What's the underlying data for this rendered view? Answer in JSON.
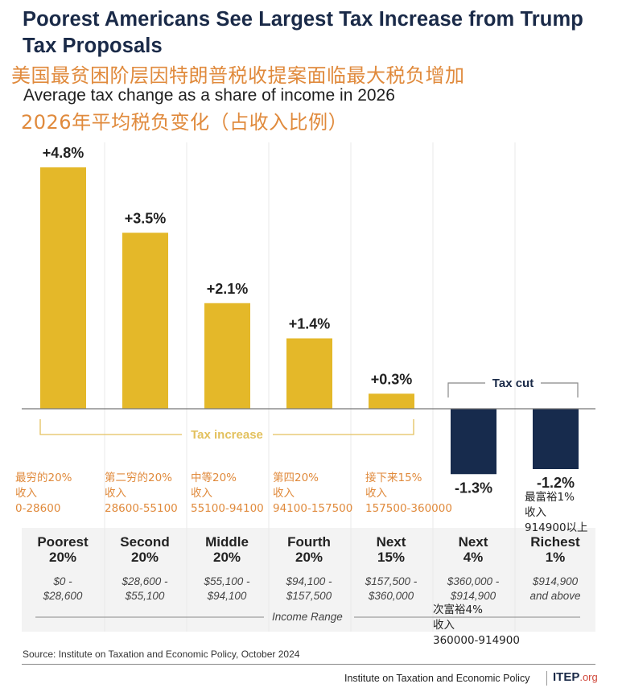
{
  "header": {
    "title": "Poorest Americans See Largest Tax Increase from Trump Tax Proposals",
    "title_cn": "美国最贫困阶层因特朗普税收提案面临最大税负增加",
    "subtitle": "Average tax change as a share of income in 2026",
    "subtitle_cn": "2026年平均税负变化（占收入比例）"
  },
  "colors": {
    "increase": "#e4b829",
    "cut": "#172b4d",
    "annotation_cn": "#e08a3c",
    "title": "#1a2a48",
    "increase_bracket": "#e3c15e"
  },
  "chart_data": {
    "type": "bar",
    "title": "Poorest Americans See Largest Tax Increase from Trump Tax Proposals",
    "subtitle": "Average tax change as a share of income in 2026",
    "xlabel": "Income Range",
    "ylabel": "",
    "unit": "% of income",
    "ylim": [
      -1.5,
      5.0
    ],
    "grid": false,
    "categories": [
      "Poorest 20%",
      "Second 20%",
      "Middle 20%",
      "Fourth 20%",
      "Next 15%",
      "Next 4%",
      "Richest 1%"
    ],
    "values": [
      4.8,
      3.5,
      2.1,
      1.4,
      0.3,
      -1.3,
      -1.2
    ],
    "value_labels": [
      "+4.8%",
      "+3.5%",
      "+2.1%",
      "+1.4%",
      "+0.3%",
      "-1.3%",
      "-1.2%"
    ],
    "annotations": [
      {
        "label": "Tax increase",
        "applies_to": [
          "Poorest 20%",
          "Second 20%",
          "Middle 20%",
          "Fourth 20%",
          "Next 15%"
        ]
      },
      {
        "label": "Tax cut",
        "applies_to": [
          "Next 4%",
          "Richest 1%"
        ]
      }
    ]
  },
  "groups": [
    {
      "name1": "Poorest",
      "name2": "20%",
      "range1": "$0 -",
      "range2": "$28,600",
      "cn": [
        "最穷的20%",
        "收入",
        "0-28600"
      ]
    },
    {
      "name1": "Second",
      "name2": "20%",
      "range1": "$28,600 -",
      "range2": "$55,100",
      "cn": [
        "第二穷的20%",
        "收入",
        "28600-55100"
      ]
    },
    {
      "name1": "Middle",
      "name2": "20%",
      "range1": "$55,100 -",
      "range2": "$94,100",
      "cn": [
        "中等20%",
        "收入",
        "55100-94100"
      ]
    },
    {
      "name1": "Fourth",
      "name2": "20%",
      "range1": "$94,100 -",
      "range2": "$157,500",
      "cn": [
        "第四20%",
        "收入",
        "94100-157500"
      ]
    },
    {
      "name1": "Next",
      "name2": "15%",
      "range1": "$157,500 -",
      "range2": "$360,000",
      "cn": [
        "接下来15%",
        "收入",
        "157500-360000"
      ]
    },
    {
      "name1": "Next",
      "name2": "4%",
      "range1": "$360,000 -",
      "range2": "$914,900",
      "cn": [
        "次富裕4%",
        "收入",
        "360000-914900"
      ]
    },
    {
      "name1": "Richest",
      "name2": "1%",
      "range1": "$914,900",
      "range2": "and above",
      "cn": [
        "最富裕1%",
        "收入",
        "914900以上"
      ]
    }
  ],
  "axis": {
    "income_range_label": "Income Range"
  },
  "footer": {
    "source": "Source: Institute on Taxation and Economic Policy, October 2024",
    "org": "Institute on Taxation and Economic Policy",
    "logo_main": "ITEP",
    "logo_suffix": ".org"
  }
}
